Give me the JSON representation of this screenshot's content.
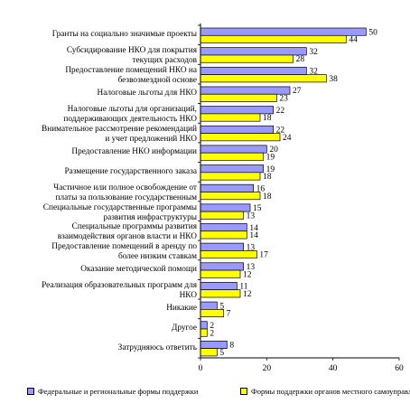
{
  "chart_data": {
    "type": "bar",
    "orientation": "horizontal",
    "categories": [
      [
        "Гранты на социально значимые проекты"
      ],
      [
        "Субсидирование НКО для покрытия",
        "текущих расходов"
      ],
      [
        "Предоставление помещений НКО на",
        "безвозмездной основе"
      ],
      [
        "Налоговые льготы для НКО"
      ],
      [
        "Налоговые льготы для организаций,",
        "поддерживающих деятельность НКО"
      ],
      [
        "Внимательное рассмотрение рекомендаций",
        "и учет предложений НКО"
      ],
      [
        "Предоставление НКО информации"
      ],
      [
        "Размещение государственного заказа"
      ],
      [
        "Частичное или полное освобождение от",
        "платы за пользование государственным"
      ],
      [
        "Специальные государственные программы",
        "развития инфраструктуры"
      ],
      [
        "Специальные программы развития",
        "взаимодействия органов власти и НКО"
      ],
      [
        "Предоставление помещений в аренду по",
        "более низким ставкам"
      ],
      [
        "Оказание методической помощи"
      ],
      [
        "Реализация образовательных программ для",
        "НКО"
      ],
      [
        "Никакие"
      ],
      [
        "Другое"
      ],
      [
        "Затрудняюсь ответить"
      ]
    ],
    "series": [
      {
        "name": "Федеральные и региональные формы поддержки",
        "color": "#9999ff",
        "values": [
          50,
          32,
          32,
          27,
          22,
          22,
          20,
          19,
          16,
          15,
          14,
          13,
          13,
          11,
          5,
          2,
          8
        ]
      },
      {
        "name": "Формы поддержки органов местного самоуправления",
        "color": "#ffff00",
        "values": [
          44,
          28,
          38,
          23,
          18,
          24,
          19,
          18,
          18,
          13,
          14,
          17,
          12,
          12,
          7,
          2,
          5
        ]
      }
    ],
    "xlim": [
      0,
      60
    ],
    "xticks": [
      0,
      20,
      40,
      60
    ],
    "grid": false,
    "legend_position": "bottom"
  }
}
